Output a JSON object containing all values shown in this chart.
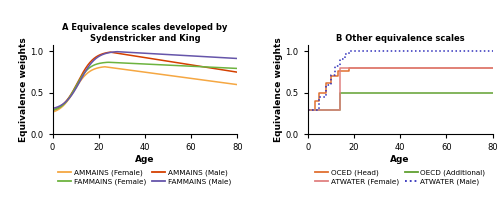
{
  "panel_A_title": "A Equivalence scales developed by\nSydenstricker and King",
  "panel_B_title": "B Other equivalence scales",
  "xlabel": "Age",
  "ylabel": "Equivalence weights",
  "xlim": [
    0,
    80
  ],
  "ylim": [
    0.0,
    1.08
  ],
  "yticks": [
    0.0,
    0.5,
    1.0
  ],
  "xticks": [
    0,
    20,
    40,
    60,
    80
  ],
  "colors": {
    "ammains_female": "#F5A742",
    "ammains_male": "#D44000",
    "fammains_female": "#6DB33F",
    "fammains_male": "#6655AA",
    "oced_head": "#E07030",
    "oecd_additional": "#60A030",
    "atwater_female": "#E08080",
    "atwater_male": "#3030BB"
  },
  "legend_A": [
    {
      "label": "AMMAINS (Female)",
      "color": "#F5A742",
      "ls": "solid"
    },
    {
      "label": "FAMMAINS (Female)",
      "color": "#6DB33F",
      "ls": "solid"
    },
    {
      "label": "AMMAINS (Male)",
      "color": "#D44000",
      "ls": "solid"
    },
    {
      "label": "FAMMAINS (Male)",
      "color": "#6655AA",
      "ls": "solid"
    }
  ],
  "legend_B": [
    {
      "label": "OCED (Head)",
      "color": "#E07030",
      "ls": "solid"
    },
    {
      "label": "ATWATER (Female)",
      "color": "#E08080",
      "ls": "solid"
    },
    {
      "label": "OECD (Additional)",
      "color": "#60A030",
      "ls": "solid"
    },
    {
      "label": "ATWATER (Male)",
      "color": "#3030BB",
      "ls": "dotted"
    }
  ]
}
